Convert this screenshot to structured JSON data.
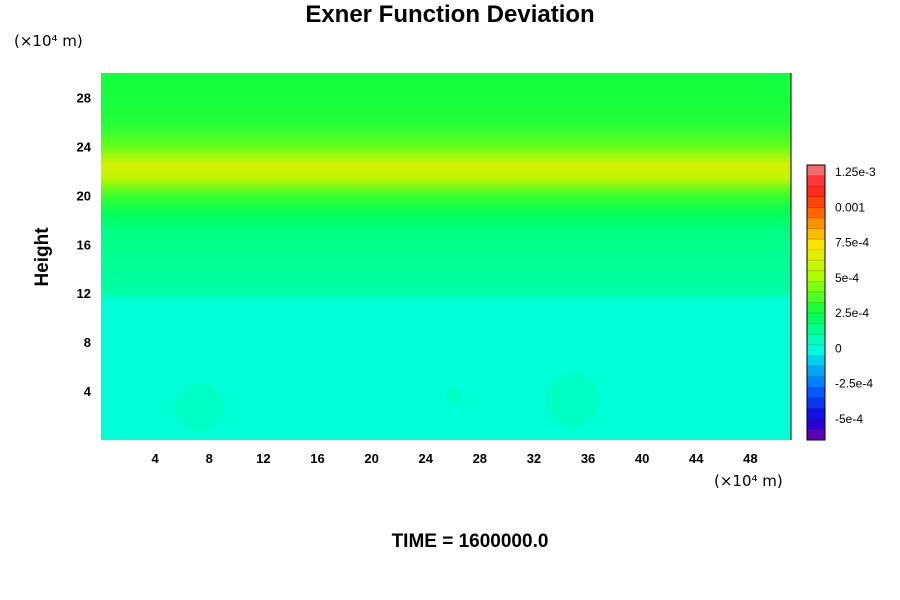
{
  "chart_data": {
    "type": "heatmap",
    "title": "Exner Function Deviation",
    "xlabel": "",
    "ylabel": "Height",
    "x_unit": "(×10⁴ m)",
    "y_unit": "(×10⁴ m)",
    "xlim": [
      0,
      51
    ],
    "ylim": [
      0,
      30
    ],
    "x_ticks": [
      4,
      8,
      12,
      16,
      20,
      24,
      28,
      32,
      36,
      40,
      44,
      48
    ],
    "y_ticks": [
      4,
      8,
      12,
      16,
      20,
      24,
      28
    ],
    "colorbar": {
      "min": -0.00065,
      "max": 0.0013,
      "tick_values": [
        0.00125,
        0.001,
        0.00075,
        0.0005,
        0.00025,
        0,
        -0.00025,
        -0.0005
      ],
      "tick_labels": [
        "1.25e-3",
        "0.001",
        "7.5e-4",
        "5e-4",
        "2.5e-4",
        "0",
        "-2.5e-4",
        "-5e-4"
      ]
    },
    "vertical_profile": [
      {
        "height": 0,
        "value": 2e-05
      },
      {
        "height": 11.5,
        "value": 2e-05
      },
      {
        "height": 12,
        "value": 0.0001
      },
      {
        "height": 17,
        "value": 0.00015
      },
      {
        "height": 18.5,
        "value": 0.00022
      },
      {
        "height": 20,
        "value": 0.00034
      },
      {
        "height": 21.5,
        "value": 0.00058
      },
      {
        "height": 22.5,
        "value": 0.00062
      },
      {
        "height": 24,
        "value": 0.0004
      },
      {
        "height": 26,
        "value": 0.0003
      },
      {
        "height": 28,
        "value": 0.00028
      },
      {
        "height": 30,
        "value": 0.00028
      }
    ],
    "features": [
      {
        "x": 7.3,
        "y": 2.7,
        "radius": 1.8,
        "value": 5e-05
      },
      {
        "x": 26.1,
        "y": 3.6,
        "radius": 0.6,
        "value": 5e-05
      },
      {
        "x": 34.9,
        "y": 3.3,
        "radius": 2.0,
        "value": 5e-05
      }
    ]
  },
  "time_label": "TIME = 1600000.0"
}
